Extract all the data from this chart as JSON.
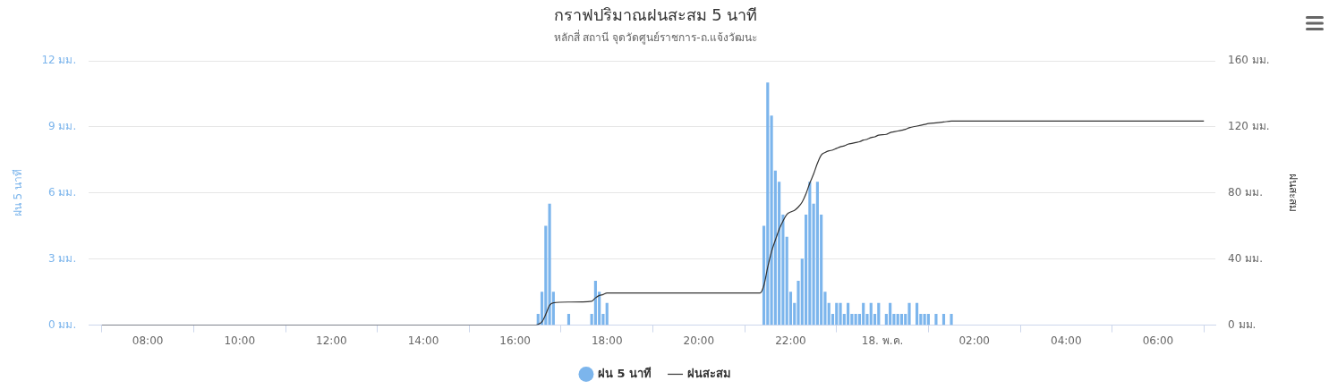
{
  "chart_data": {
    "type": "bar",
    "title": "กราฟปริมาณฝนสะสม 5 นาที",
    "subtitle": "หลักสี่ สถานี จุดวัดศูนย์ราชการ-ถ.แจ้งวัฒนะ",
    "ylabel": "ฝน 5 นาที",
    "y2label": "ฝนสะสม",
    "xlim": [
      "--05-17T06:43",
      "--05-18T07:15"
    ],
    "xticks": [
      {
        "value": "--05-17T08:00",
        "label": "08:00"
      },
      {
        "value": "--05-17T10:00",
        "label": "10:00"
      },
      {
        "value": "--05-17T12:00",
        "label": "12:00"
      },
      {
        "value": "--05-17T14:00",
        "label": "14:00"
      },
      {
        "value": "--05-17T16:00",
        "label": "16:00"
      },
      {
        "value": "--05-17T18:00",
        "label": "18:00"
      },
      {
        "value": "--05-17T20:00",
        "label": "20:00"
      },
      {
        "value": "--05-17T22:00",
        "label": "22:00"
      },
      {
        "value": "--05-18T00:00",
        "label": "18. พ.ค."
      },
      {
        "value": "--05-18T02:00",
        "label": "02:00"
      },
      {
        "value": "--05-18T04:00",
        "label": "04:00"
      },
      {
        "value": "--05-18T06:00",
        "label": "06:00"
      }
    ],
    "ylim": [
      0,
      12
    ],
    "yticks": [
      {
        "value": 0,
        "label": "0 มม."
      },
      {
        "value": 3,
        "label": "3 มม."
      },
      {
        "value": 6,
        "label": "6 มม."
      },
      {
        "value": 9,
        "label": "9 มม."
      },
      {
        "value": 12,
        "label": "12 มม."
      }
    ],
    "y2lim": [
      0,
      160
    ],
    "y2ticks": [
      {
        "value": 0,
        "label": "0 มม."
      },
      {
        "value": 40,
        "label": "40 มม."
      },
      {
        "value": 80,
        "label": "80 มม."
      },
      {
        "value": 120,
        "label": "120 มม."
      },
      {
        "value": 160,
        "label": "160 มม."
      }
    ],
    "grid": "y",
    "legend": "bottom",
    "series": [
      {
        "name": "ฝน 5 นาที",
        "color": "#7cb5ec",
        "x": [
          "--05-17T16:30",
          "--05-17T16:35",
          "--05-17T16:40",
          "--05-17T16:45",
          "--05-17T16:50",
          "--05-17T17:10",
          "--05-17T17:40",
          "--05-17T17:45",
          "--05-17T17:50",
          "--05-17T17:55",
          "--05-17T18:00",
          "--05-17T21:25",
          "--05-17T21:30",
          "--05-17T21:35",
          "--05-17T21:40",
          "--05-17T21:45",
          "--05-17T21:50",
          "--05-17T21:55",
          "--05-17T22:00",
          "--05-17T22:05",
          "--05-17T22:10",
          "--05-17T22:15",
          "--05-17T22:20",
          "--05-17T22:25",
          "--05-17T22:30",
          "--05-17T22:35",
          "--05-17T22:40",
          "--05-17T22:45",
          "--05-17T22:50",
          "--05-17T22:55",
          "--05-17T23:00",
          "--05-17T23:05",
          "--05-17T23:10",
          "--05-17T23:15",
          "--05-17T23:20",
          "--05-17T23:25",
          "--05-17T23:30",
          "--05-17T23:35",
          "--05-17T23:40",
          "--05-17T23:45",
          "--05-17T23:50",
          "--05-17T23:55",
          "--05-18T00:05",
          "--05-18T00:10",
          "--05-18T00:15",
          "--05-18T00:20",
          "--05-18T00:25",
          "--05-18T00:30",
          "--05-18T00:35",
          "--05-18T00:45",
          "--05-18T00:50",
          "--05-18T00:55",
          "--05-18T01:00",
          "--05-18T01:10",
          "--05-18T01:20",
          "--05-18T01:30"
        ],
        "values": [
          0.5,
          1.5,
          4.5,
          5.5,
          1.5,
          0.5,
          0.5,
          2,
          1.5,
          0.5,
          1,
          4.5,
          11,
          9.5,
          7,
          6.5,
          5,
          4,
          1.5,
          1,
          2,
          3,
          5,
          6.5,
          5.5,
          6.5,
          5,
          1.5,
          1,
          0.5,
          1,
          1,
          0.5,
          1,
          0.5,
          0.5,
          0.5,
          1,
          0.5,
          1,
          0.5,
          1,
          0.5,
          1,
          0.5,
          0.5,
          0.5,
          0.5,
          1,
          1,
          0.5,
          0.5,
          0.5,
          0.5,
          0.5,
          0.5
        ]
      },
      {
        "name": "ฝนสะสม",
        "type": "line",
        "axis": "y2",
        "color": "#333333",
        "x": [
          "--05-17T07:00",
          "--05-17T16:25",
          "--05-17T16:30",
          "--05-17T16:35",
          "--05-17T16:40",
          "--05-17T16:45",
          "--05-17T16:50",
          "--05-17T17:10",
          "--05-17T17:40",
          "--05-17T17:45",
          "--05-17T17:50",
          "--05-17T17:55",
          "--05-17T18:00",
          "--05-17T21:20",
          "--05-17T21:25",
          "--05-17T21:30",
          "--05-17T21:35",
          "--05-17T21:40",
          "--05-17T21:45",
          "--05-17T21:50",
          "--05-17T21:55",
          "--05-17T22:00",
          "--05-17T22:05",
          "--05-17T22:10",
          "--05-17T22:15",
          "--05-17T22:20",
          "--05-17T22:25",
          "--05-17T22:30",
          "--05-17T22:35",
          "--05-17T22:40",
          "--05-17T22:45",
          "--05-17T22:50",
          "--05-17T22:55",
          "--05-17T23:00",
          "--05-17T23:05",
          "--05-17T23:10",
          "--05-17T23:15",
          "--05-17T23:20",
          "--05-17T23:25",
          "--05-17T23:30",
          "--05-17T23:35",
          "--05-17T23:40",
          "--05-17T23:45",
          "--05-17T23:50",
          "--05-17T23:55",
          "--05-18T00:05",
          "--05-18T00:10",
          "--05-18T00:15",
          "--05-18T00:20",
          "--05-18T00:25",
          "--05-18T00:30",
          "--05-18T00:35",
          "--05-18T00:45",
          "--05-18T00:50",
          "--05-18T00:55",
          "--05-18T01:00",
          "--05-18T01:10",
          "--05-18T01:20",
          "--05-18T01:30",
          "--05-18T07:00"
        ],
        "values": [
          0,
          0,
          0.5,
          2,
          6.5,
          12,
          13.5,
          14,
          14.5,
          16.5,
          18,
          18.5,
          19.5,
          19.5,
          24,
          35,
          44.5,
          51.5,
          58,
          63,
          67,
          68.5,
          69.5,
          71.5,
          74.5,
          79.5,
          86,
          91.5,
          98,
          103,
          104.5,
          105.5,
          106,
          107,
          108,
          108.5,
          109.5,
          110,
          110.5,
          111,
          112,
          112.5,
          113.5,
          114,
          115,
          115.5,
          116.5,
          117,
          117.5,
          118,
          118.5,
          119.5,
          120.5,
          121,
          121.5,
          122,
          122.5,
          123,
          123.5,
          123.5
        ]
      }
    ]
  }
}
